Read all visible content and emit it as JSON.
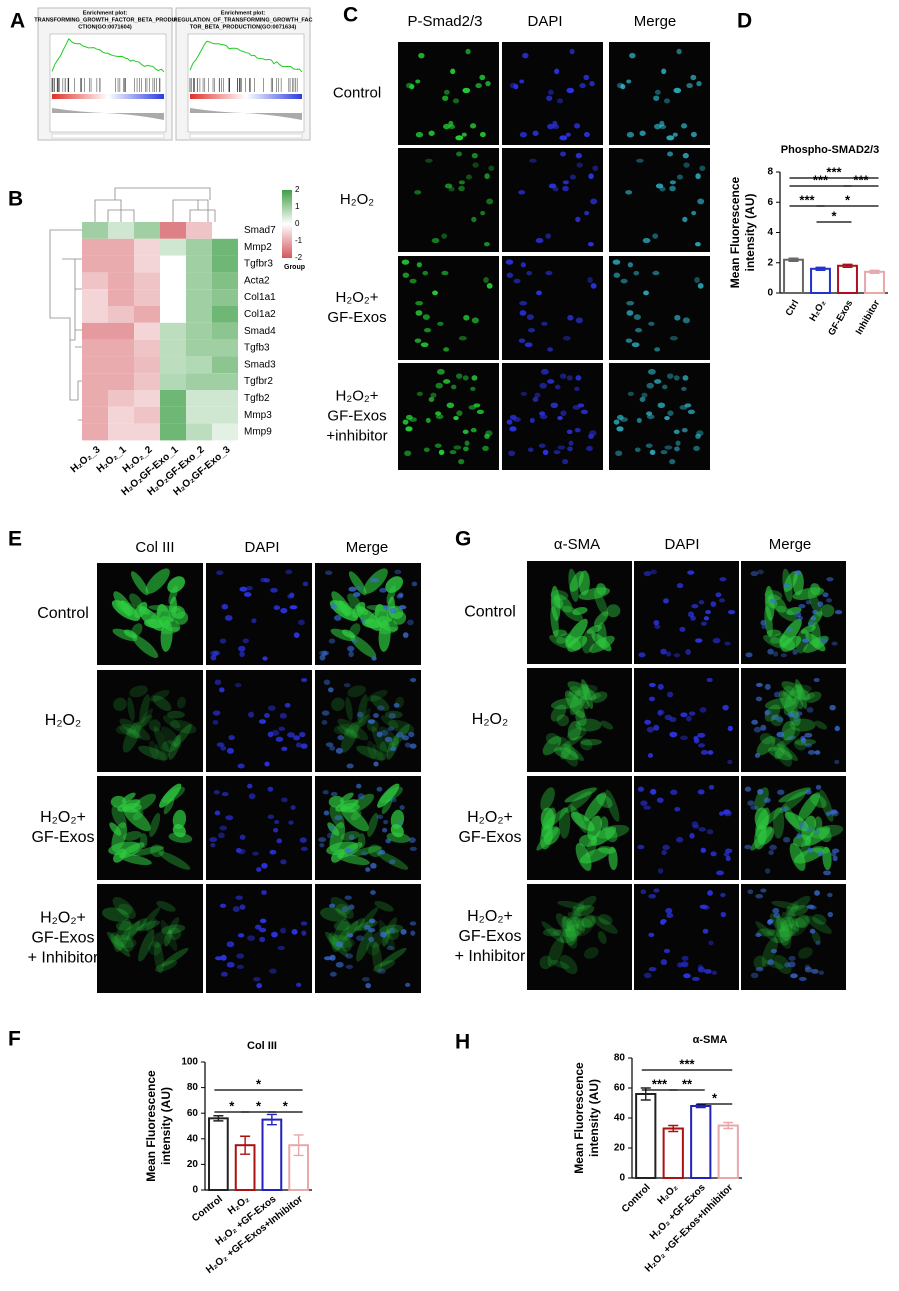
{
  "panel_labels": [
    "A",
    "B",
    "C",
    "D",
    "E",
    "F",
    "G",
    "H"
  ],
  "gsea": [
    {
      "title": [
        "Enrichment plot:",
        "TRANSFORMING_GROWTH_FACTOR_BETA_PRODU",
        "CTION(GO:0071604)"
      ]
    },
    {
      "title": [
        "Enrichment plot:",
        "REGULATION_OF_TRANSFORMING_GROWTH_FAC",
        "TOR_BETA_PRODUCTION(GO:0071634)"
      ]
    }
  ],
  "image_panels": [
    {
      "columns": [
        "P-Smad2/3",
        "DAPI",
        "Merge"
      ],
      "rows": [
        [
          "Control"
        ],
        [
          "H₂O₂"
        ],
        [
          "H₂O₂+",
          "GF-Exos"
        ],
        [
          "H₂O₂+",
          "GF-Exos",
          "+inhibitor"
        ]
      ]
    },
    {
      "columns": [
        "Col III",
        "DAPI",
        "Merge"
      ],
      "rows": [
        [
          "Control"
        ],
        [
          "H₂O₂"
        ],
        [
          "H₂O₂+",
          "GF-Exos"
        ],
        [
          "H₂O₂+",
          "GF-Exos",
          "+ Inhibitor"
        ]
      ]
    },
    {
      "columns": [
        "α-SMA",
        "DAPI",
        "Merge"
      ],
      "rows": [
        [
          "Control"
        ],
        [
          "H₂O₂"
        ],
        [
          "H₂O₂+",
          "GF-Exos"
        ],
        [
          "H₂O₂+",
          "GF-Exos",
          "+ Inhibitor"
        ]
      ]
    }
  ],
  "chart_data": [
    {
      "type": "heatmap",
      "rows": [
        "Smad7",
        "Mmp2",
        "Tgfbr3",
        "Acta2",
        "Col1a1",
        "Col1a2",
        "Smad4",
        "Tgfb3",
        "Smad3",
        "Tgfbr2",
        "Tgfb2",
        "Mmp3",
        "Mmp9"
      ],
      "columns": [
        "H₂O₂_3",
        "H₂O₂_1",
        "H₂O₂_2",
        "H₂O₂GF-Exo_1",
        "H₂O₂GF-Exo_2",
        "H₂O₂GF-Exo_3"
      ],
      "values": [
        [
          1,
          0.5,
          1,
          -1.5,
          -0.7,
          0
        ],
        [
          -1,
          -1,
          -0.5,
          0.5,
          1,
          1.5
        ],
        [
          -1,
          -1,
          -0.5,
          0,
          1,
          1.5
        ],
        [
          -0.7,
          -1,
          -0.7,
          0,
          1,
          1.3
        ],
        [
          -0.5,
          -1,
          -0.7,
          0,
          1,
          1.2
        ],
        [
          -0.5,
          -0.7,
          -1,
          0,
          1,
          1.5
        ],
        [
          -1.2,
          -1.2,
          -0.5,
          0.7,
          1,
          1.2
        ],
        [
          -1,
          -1,
          -0.7,
          0.7,
          1,
          1
        ],
        [
          -1,
          -1,
          -0.8,
          0.7,
          0.8,
          1.2
        ],
        [
          -1,
          -1,
          -0.7,
          0.8,
          1,
          1
        ],
        [
          -1,
          -0.7,
          -0.5,
          1.5,
          0.5,
          0.5
        ],
        [
          -1,
          -0.5,
          -0.7,
          1.5,
          0.5,
          0.5
        ],
        [
          -1,
          -0.5,
          -0.5,
          1.5,
          0.7,
          0.3
        ]
      ],
      "zlim": [
        -2,
        2
      ],
      "colorbar_ticks": [
        2,
        1,
        0,
        -1,
        -2
      ],
      "legend_title": "Group",
      "colors": [
        "#d2575d",
        "#ffffff",
        "#3f9f45"
      ]
    },
    {
      "type": "bar",
      "title": "Phospho-SMAD2/3",
      "ylabel": [
        "Mean Fluorescence",
        "intensity (AU)"
      ],
      "categories": [
        "Ctrl",
        "H₂O₂",
        "GF-Exos",
        "Inhibitor"
      ],
      "values": [
        2.2,
        1.6,
        1.8,
        1.4
      ],
      "errors": [
        0.1,
        0.1,
        0.1,
        0.1
      ],
      "colors": [
        "#666666",
        "#2233cc",
        "#aa1122",
        "#e8a8aa"
      ],
      "ylim": [
        0,
        8
      ],
      "yticks": [
        0,
        2,
        4,
        6,
        8
      ],
      "annotations": [
        "***",
        "***",
        "***",
        "***",
        "*",
        "*"
      ]
    },
    {
      "type": "bar",
      "title": "Col III",
      "ylabel": [
        "Mean Fluorescence",
        "intensity (AU)"
      ],
      "categories": [
        "Control",
        "H₂O₂",
        "H₂O₂ +GF-Exos",
        "H₂O₂ +GF-Exos+Inhibitor"
      ],
      "values": [
        56,
        35,
        55,
        35
      ],
      "errors": [
        2,
        7,
        4,
        8
      ],
      "colors": [
        "#222222",
        "#aa1111",
        "#2222bb",
        "#e8a8aa"
      ],
      "ylim": [
        0,
        100
      ],
      "yticks": [
        0,
        20,
        40,
        60,
        80,
        100
      ],
      "annotations": [
        "*",
        "*",
        "*",
        "*"
      ]
    },
    {
      "type": "bar",
      "title": "α-SMA",
      "ylabel": [
        "Mean Fluorescence",
        "intensity (AU)"
      ],
      "categories": [
        "Control",
        "H₂O₂",
        "H₂O₂ +GF-Exos",
        "H₂O₂ +GF-Exos+Inhibitor"
      ],
      "values": [
        56,
        33,
        48,
        35
      ],
      "errors": [
        4,
        2,
        1,
        2
      ],
      "colors": [
        "#222222",
        "#aa1111",
        "#2222bb",
        "#e8a8aa"
      ],
      "ylim": [
        0,
        80
      ],
      "yticks": [
        0,
        20,
        40,
        60,
        80
      ],
      "annotations": [
        "***",
        "***",
        "**",
        "*"
      ]
    }
  ]
}
